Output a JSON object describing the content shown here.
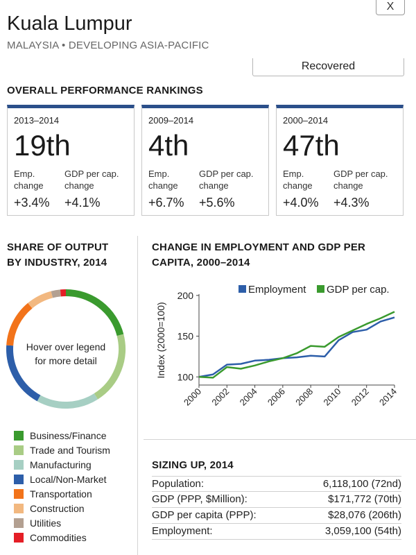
{
  "header": {
    "city": "Kuala Lumpur",
    "subtitle": "MALAYSIA • DEVELOPING ASIA-PACIFIC",
    "close_label": "X",
    "status": "Recovered"
  },
  "rankings": {
    "heading": "OVERALL PERFORMANCE RANKINGS",
    "emp_label_1": "Emp.",
    "emp_label_2": "change",
    "gdp_label_1": "GDP per cap.",
    "gdp_label_2": "change",
    "cards": [
      {
        "period": "2013–2014",
        "rank": "19th",
        "emp": "+3.4%",
        "gdp": "+4.1%"
      },
      {
        "period": "2009–2014",
        "rank": "4th",
        "emp": "+6.7%",
        "gdp": "+5.6%"
      },
      {
        "period": "2000–2014",
        "rank": "47th",
        "emp": "+4.0%",
        "gdp": "+4.3%"
      }
    ]
  },
  "industry": {
    "heading_1": "SHARE OF OUTPUT",
    "heading_2": "BY INDUSTRY, 2014",
    "hint_1": "Hover over legend",
    "hint_2": "for more detail",
    "legend": [
      {
        "label": "Business/Finance",
        "color": "#3a9a2e"
      },
      {
        "label": "Trade and Tourism",
        "color": "#a9cc85"
      },
      {
        "label": "Manufacturing",
        "color": "#a6cfc3"
      },
      {
        "label": "Local/Non-Market",
        "color": "#2d5ea9"
      },
      {
        "label": "Transportation",
        "color": "#f2731a"
      },
      {
        "label": "Construction",
        "color": "#f2b880"
      },
      {
        "label": "Utilities",
        "color": "#b3a091"
      },
      {
        "label": "Commodities",
        "color": "#e41e26"
      }
    ],
    "shares": [
      0.21,
      0.2,
      0.17,
      0.18,
      0.13,
      0.07,
      0.025,
      0.015
    ]
  },
  "chart": {
    "heading_1": "CHANGE IN EMPLOYMENT AND GDP PER",
    "heading_2": "CAPITA, 2000–2014"
  },
  "chart_data": {
    "type": "line",
    "ylabel": "Index (2000=100)",
    "x": [
      2000,
      2001,
      2002,
      2003,
      2004,
      2005,
      2006,
      2007,
      2008,
      2009,
      2010,
      2011,
      2012,
      2013,
      2014
    ],
    "x_ticks": [
      "2000",
      "2002",
      "2004",
      "2006",
      "2008",
      "2010",
      "2012",
      "2014"
    ],
    "y_ticks": [
      "100",
      "150",
      "200"
    ],
    "ylim": [
      90,
      205
    ],
    "grid": false,
    "legend_position": "top-right",
    "series": [
      {
        "name": "Employment",
        "color": "#2d5ea9",
        "values": [
          100,
          103,
          115,
          116,
          120,
          121,
          123,
          124,
          126,
          125,
          145,
          155,
          158,
          168,
          173
        ]
      },
      {
        "name": "GDP per cap.",
        "color": "#3a9a2e",
        "values": [
          100,
          99,
          112,
          110,
          114,
          119,
          123,
          129,
          138,
          137,
          149,
          157,
          165,
          172,
          180
        ]
      }
    ]
  },
  "sizing": {
    "heading": "SIZING UP, 2014",
    "rows": [
      {
        "label": "Population:",
        "value": "6,118,100 (72nd)"
      },
      {
        "label": "GDP (PPP, $Million):",
        "value": "$171,772 (70th)"
      },
      {
        "label": "GDP per capita (PPP):",
        "value": "$28,076 (206th)"
      },
      {
        "label": "Employment:",
        "value": "3,059,100 (54th)"
      }
    ]
  }
}
